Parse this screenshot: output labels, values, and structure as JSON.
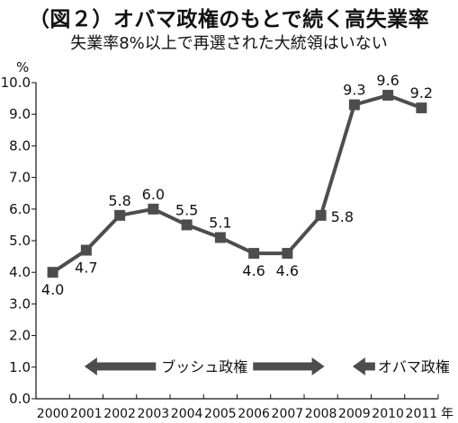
{
  "chart_data": {
    "type": "line",
    "title": "（図２）オバマ政権のもとで続く高失業率",
    "subtitle": "失業率8%以上で再選された大統領はいない",
    "ylabel": "%",
    "xunit": "年",
    "ylim": [
      0.0,
      10.0
    ],
    "yticks": [
      "0.0",
      "1.0",
      "2.0",
      "3.0",
      "4.0",
      "5.0",
      "6.0",
      "7.0",
      "8.0",
      "9.0",
      "10.0"
    ],
    "categories": [
      "2000",
      "2001",
      "2002",
      "2003",
      "2004",
      "2005",
      "2006",
      "2007",
      "2008",
      "2009",
      "2010",
      "2011"
    ],
    "values": [
      4.0,
      4.7,
      5.8,
      6.0,
      5.5,
      5.1,
      4.6,
      4.6,
      5.8,
      9.3,
      9.6,
      9.2
    ],
    "labels": [
      "4.0",
      "4.7",
      "5.8",
      "6.0",
      "5.5",
      "5.1",
      "4.6",
      "4.6",
      "5.8",
      "9.3",
      "9.6",
      "9.2"
    ],
    "grid": false,
    "color": "#4d4d4d",
    "annotations": [
      {
        "text": "ブッシュ政権",
        "from": "2001",
        "to": "2008",
        "arrows": "both"
      },
      {
        "text": "オバマ政権",
        "from": "2009",
        "to": "2011",
        "arrows": "left"
      }
    ]
  }
}
